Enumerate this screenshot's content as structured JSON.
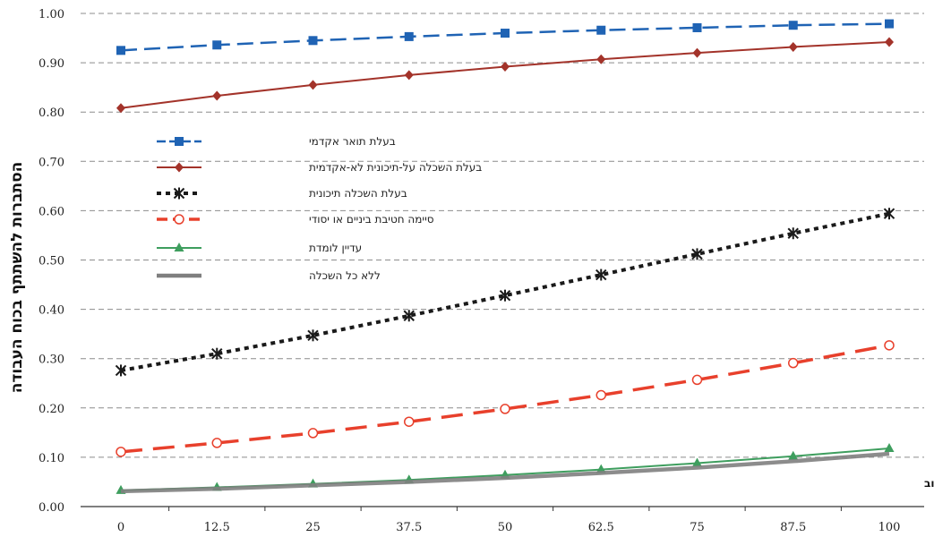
{
  "chart_data": {
    "type": "line",
    "x": [
      0,
      12.5,
      25,
      37.5,
      50,
      62.5,
      75,
      87.5,
      100
    ],
    "x_tick_labels": [
      "0",
      "12.5",
      "25",
      "37.5",
      "50",
      "62.5",
      "75",
      "87.5",
      "100"
    ],
    "ylim": [
      0,
      1
    ],
    "y_tick_labels": [
      "0.00",
      "0.10",
      "0.20",
      "0.30",
      "0.40",
      "0.50",
      "0.60",
      "0.70",
      "0.80",
      "0.90",
      "1.00"
    ],
    "ylabel": "הסתברות להשתתף בכוח העבודה",
    "xlabel": "רמת תשתיות בישוב",
    "grid": "horizontal dashed",
    "legend_position": "upper-left",
    "series": [
      {
        "name": "בעלת תואר אקדמי",
        "color": "#1f63b4",
        "style": "dashed",
        "marker": "square",
        "values": [
          0.925,
          0.936,
          0.945,
          0.953,
          0.96,
          0.966,
          0.971,
          0.976,
          0.979
        ]
      },
      {
        "name": "בעלת השכלה על-תיכונית לא-אקדמית",
        "color": "#a3332a",
        "style": "solid",
        "marker": "diamond",
        "values": [
          0.808,
          0.833,
          0.855,
          0.875,
          0.892,
          0.907,
          0.92,
          0.932,
          0.942
        ]
      },
      {
        "name": "בעלת השכלה תיכונית",
        "color": "#1a1a1a",
        "style": "dotted",
        "marker": "star",
        "values": [
          0.276,
          0.31,
          0.347,
          0.387,
          0.428,
          0.47,
          0.512,
          0.554,
          0.594
        ]
      },
      {
        "name": "סיימה חטיבת ביניים או יסודי",
        "color": "#e8402c",
        "style": "longdash",
        "marker": "circle",
        "values": [
          0.111,
          0.129,
          0.149,
          0.172,
          0.198,
          0.226,
          0.257,
          0.291,
          0.327
        ]
      },
      {
        "name": "עדיין לומדת",
        "color": "#3e9e5e",
        "style": "solid",
        "marker": "triangle",
        "values": [
          0.033,
          0.039,
          0.046,
          0.054,
          0.064,
          0.075,
          0.088,
          0.102,
          0.118
        ]
      },
      {
        "name": "ללא כל השכלה",
        "color": "#7f7f7f",
        "style": "thick",
        "marker": "none",
        "values": [
          0.031,
          0.036,
          0.043,
          0.05,
          0.058,
          0.068,
          0.079,
          0.092,
          0.107
        ]
      }
    ]
  }
}
